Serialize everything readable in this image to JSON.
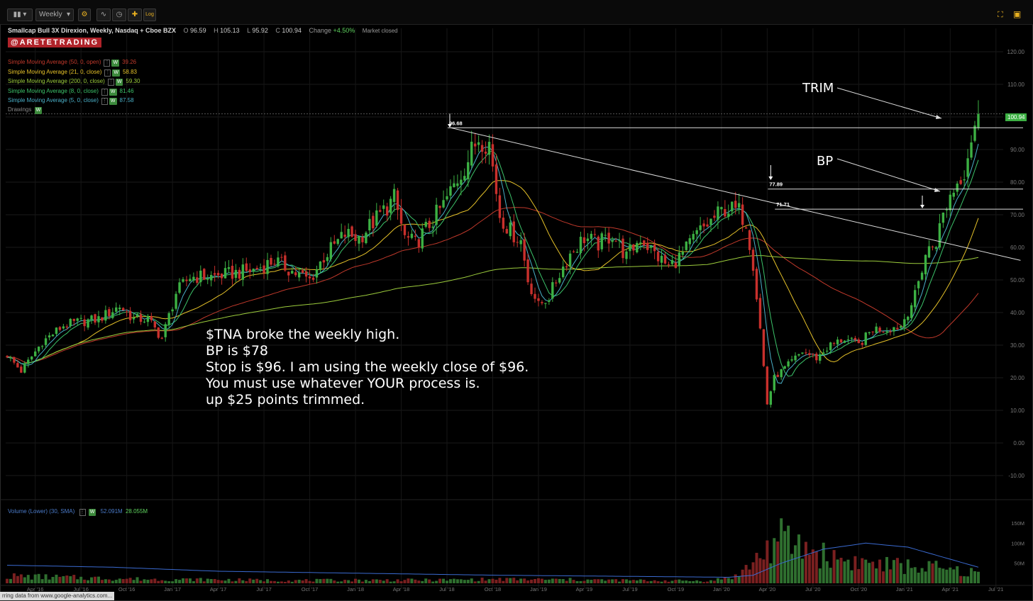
{
  "toolbar": {
    "interval": "Weekly",
    "log_label": "Log"
  },
  "header": {
    "symbol": "Smallcap Bull 3X Direxion, Weekly, Nasdaq + Cboe BZX",
    "open_label": "O",
    "open": "96.59",
    "high_label": "H",
    "high": "105.13",
    "low_label": "L",
    "low": "95.92",
    "close_label": "C",
    "close": "100.94",
    "change_label": "Change",
    "change": "+4.50%",
    "market_status": "Market closed"
  },
  "brand": "@ARETETRADING",
  "indicators": [
    {
      "name": "Simple Moving Average (50, 0, open)",
      "value": "39.26",
      "color": "#c0392b"
    },
    {
      "name": "Simple Moving Average (21, 0, close)",
      "value": "58.83",
      "color": "#e6c229"
    },
    {
      "name": "Simple Moving Average (200, 0, close)",
      "value": "59.30",
      "color": "#9ccc3c"
    },
    {
      "name": "Simple Moving Average (8, 0, close)",
      "value": "81.46",
      "color": "#3cc36a"
    },
    {
      "name": "Simple Moving Average (5, 0, close)",
      "value": "87.58",
      "color": "#4ab0c8"
    }
  ],
  "drawings_label": "Drawings",
  "w_badge": "W",
  "volume_legend": {
    "name": "Volume (Lower) (30, SMA)",
    "value1": "52.091M",
    "value2": "28.055M"
  },
  "annotation_lines": [
    "$TNA broke the weekly high.",
    "BP is $78",
    "Stop is $96. I am using the weekly close of $96.",
    "You must use whatever YOUR process is.",
    "up $25 points trimmed."
  ],
  "labels": {
    "trim": "TRIM",
    "bp": "BP",
    "level_96": "96.68",
    "level_78": "77.89",
    "level_72": "71.71",
    "last_price": "100.94"
  },
  "status_bar": "rring data from www.google-analytics.com...",
  "chart_data": {
    "type": "candlestick",
    "title": "Smallcap Bull 3X Direxion, Weekly, Nasdaq + Cboe BZX",
    "ylim": [
      -14,
      124
    ],
    "y_ticks": [
      "120.00",
      "110.00",
      "100.00",
      "90.00",
      "80.00",
      "70.00",
      "60.00",
      "50.00",
      "40.00",
      "30.00",
      "20.00",
      "10.00",
      "0.00",
      "-10.00"
    ],
    "y_tick_values": [
      120,
      110,
      100,
      90,
      80,
      70,
      60,
      50,
      40,
      30,
      20,
      10,
      0,
      -10
    ],
    "x_ticks": [
      "Apr '16",
      "Jul '16",
      "Oct '16",
      "Jan '17",
      "Apr '17",
      "Jul '17",
      "Oct '17",
      "Jan '18",
      "Apr '18",
      "Jul '18",
      "Oct '18",
      "Jan '19",
      "Apr '19",
      "Jul '19",
      "Oct '19",
      "Jan '20",
      "Apr '20",
      "Jul '20",
      "Oct '20",
      "Jan '21",
      "Apr '21",
      "Jul '21"
    ],
    "x_tick_index": [
      8,
      21,
      34,
      47,
      60,
      73,
      86,
      99,
      112,
      125,
      138,
      151,
      164,
      177,
      190,
      203,
      216,
      229,
      242,
      255,
      268,
      281
    ],
    "volume_ticks": [
      "150M",
      "100M",
      "50M"
    ],
    "volume_tick_values": [
      150,
      100,
      50
    ],
    "price_anchors": [
      [
        0,
        27
      ],
      [
        4,
        22
      ],
      [
        10,
        31
      ],
      [
        16,
        36
      ],
      [
        20,
        37
      ],
      [
        26,
        38
      ],
      [
        32,
        42
      ],
      [
        36,
        38
      ],
      [
        40,
        38
      ],
      [
        44,
        32
      ],
      [
        48,
        46
      ],
      [
        52,
        51
      ],
      [
        58,
        51
      ],
      [
        64,
        52
      ],
      [
        70,
        53
      ],
      [
        76,
        56
      ],
      [
        82,
        52
      ],
      [
        86,
        50
      ],
      [
        90,
        57
      ],
      [
        96,
        64
      ],
      [
        100,
        63
      ],
      [
        106,
        70
      ],
      [
        110,
        75
      ],
      [
        113,
        63
      ],
      [
        116,
        61
      ],
      [
        120,
        67
      ],
      [
        124,
        73
      ],
      [
        128,
        81
      ],
      [
        131,
        87
      ],
      [
        134,
        94
      ],
      [
        137,
        92
      ],
      [
        140,
        70
      ],
      [
        143,
        65
      ],
      [
        146,
        62
      ],
      [
        148,
        50
      ],
      [
        151,
        42
      ],
      [
        154,
        45
      ],
      [
        157,
        52
      ],
      [
        160,
        58
      ],
      [
        164,
        63
      ],
      [
        168,
        61
      ],
      [
        172,
        64
      ],
      [
        176,
        57
      ],
      [
        180,
        63
      ],
      [
        184,
        58
      ],
      [
        188,
        54
      ],
      [
        192,
        58
      ],
      [
        196,
        64
      ],
      [
        200,
        68
      ],
      [
        204,
        72
      ],
      [
        208,
        71
      ],
      [
        210,
        68
      ],
      [
        212,
        55
      ],
      [
        214,
        35
      ],
      [
        216,
        12
      ],
      [
        218,
        20
      ],
      [
        222,
        24
      ],
      [
        226,
        28
      ],
      [
        230,
        26
      ],
      [
        234,
        30
      ],
      [
        238,
        32
      ],
      [
        242,
        30
      ],
      [
        246,
        35
      ],
      [
        250,
        35
      ],
      [
        254,
        36
      ],
      [
        258,
        45
      ],
      [
        261,
        58
      ],
      [
        264,
        62
      ],
      [
        266,
        70
      ],
      [
        268,
        76
      ],
      [
        270,
        80
      ],
      [
        272,
        84
      ],
      [
        274,
        94
      ],
      [
        276,
        101
      ]
    ],
    "volume_anchors": [
      [
        0,
        18
      ],
      [
        20,
        14
      ],
      [
        40,
        10
      ],
      [
        60,
        9
      ],
      [
        80,
        7
      ],
      [
        100,
        8
      ],
      [
        120,
        8
      ],
      [
        140,
        10
      ],
      [
        160,
        9
      ],
      [
        180,
        7
      ],
      [
        200,
        6
      ],
      [
        208,
        20
      ],
      [
        214,
        70
      ],
      [
        220,
        110
      ],
      [
        226,
        90
      ],
      [
        232,
        70
      ],
      [
        240,
        55
      ],
      [
        250,
        45
      ],
      [
        262,
        40
      ],
      [
        270,
        30
      ],
      [
        276,
        26
      ]
    ],
    "volume_sma_anchors": [
      [
        0,
        45
      ],
      [
        30,
        40
      ],
      [
        60,
        30
      ],
      [
        100,
        25
      ],
      [
        140,
        20
      ],
      [
        180,
        17
      ],
      [
        205,
        15
      ],
      [
        212,
        20
      ],
      [
        220,
        50
      ],
      [
        232,
        85
      ],
      [
        244,
        100
      ],
      [
        256,
        90
      ],
      [
        268,
        60
      ],
      [
        276,
        40
      ]
    ],
    "trendline": {
      "from_index": 126,
      "from_price": 96.68,
      "to_index": 288,
      "to_price": 56
    },
    "horizontal_levels": [
      {
        "label": "96.68",
        "price": 96.68,
        "from_index": 126
      },
      {
        "label": "77.89",
        "price": 77.89,
        "from_index": 217
      },
      {
        "label": "71.71",
        "price": 71.71,
        "from_index": 219
      }
    ],
    "last_price": 100.94,
    "legend": "top-left",
    "grid": true
  }
}
